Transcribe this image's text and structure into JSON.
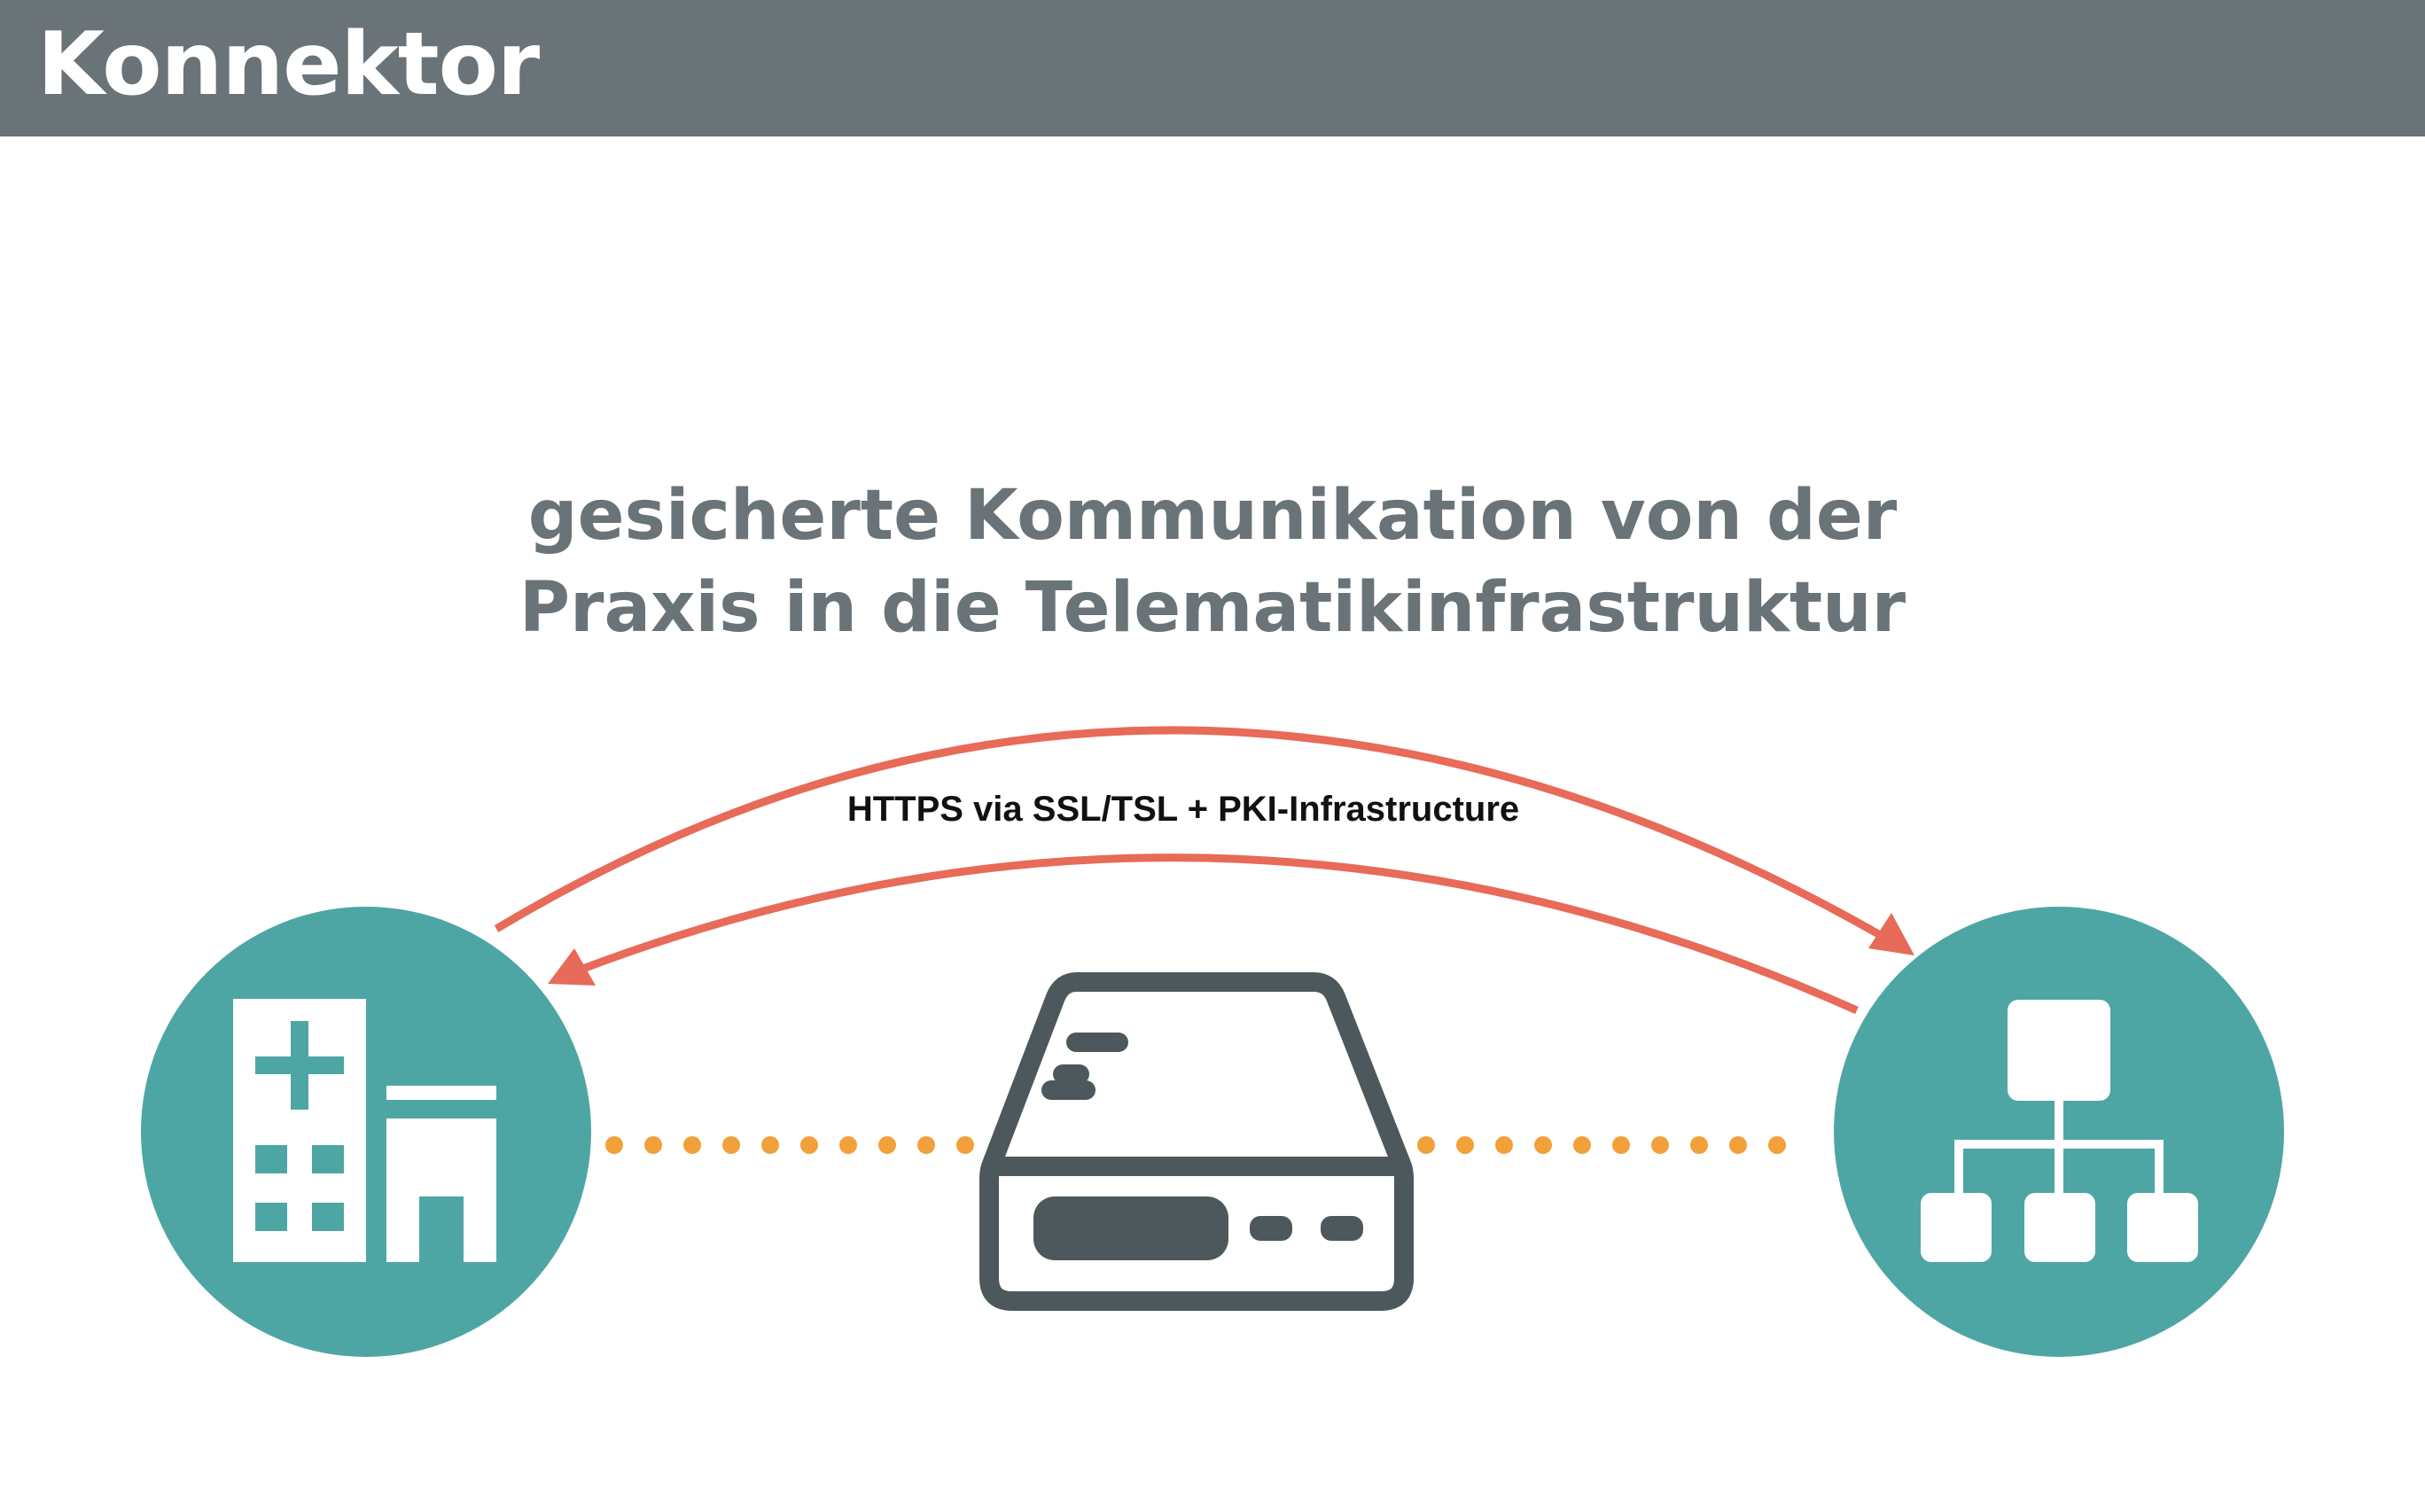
{
  "header": {
    "title": "Konnektor"
  },
  "diagram": {
    "subtitle_line1": "gesicherte Kommunikation von der",
    "subtitle_line2": "Praxis in die Telematikinfrastruktur",
    "protocol_label": "HTTPS via SSL/TSL + PKI-Infrastructure",
    "nodes": [
      {
        "id": "praxis",
        "icon": "hospital-building-icon"
      },
      {
        "id": "konnektor",
        "icon": "hard-drive-icon"
      },
      {
        "id": "telematikinfrastruktur",
        "icon": "network-hierarchy-icon"
      }
    ],
    "colors": {
      "header": "#6a7378",
      "teal": "#4ea6a4",
      "arrow": "#e86a58",
      "dots": "#f2a03a",
      "device": "#4d585c"
    }
  }
}
